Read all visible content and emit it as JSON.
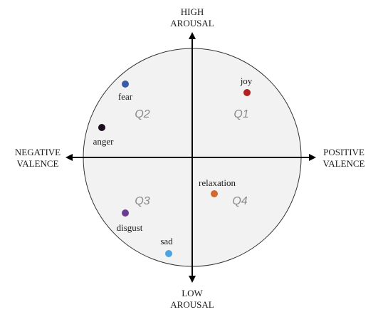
{
  "axes": {
    "top": [
      "HIGH",
      "AROUSAL"
    ],
    "bottom": [
      "LOW",
      "AROUSAL"
    ],
    "left": [
      "NEGATIVE",
      "VALENCE"
    ],
    "right": [
      "POSITIVE",
      "VALENCE"
    ]
  },
  "quadrants": {
    "q1": "Q1",
    "q2": "Q2",
    "q3": "Q3",
    "q4": "Q4"
  },
  "emotions": {
    "joy": {
      "label": "joy",
      "color": "#b22222"
    },
    "fear": {
      "label": "fear",
      "color": "#3a5ba8"
    },
    "anger": {
      "label": "anger",
      "color": "#1c0d1e"
    },
    "relaxation": {
      "label": "relaxation",
      "color": "#d2692f"
    },
    "disgust": {
      "label": "disgust",
      "color": "#6a3d8e"
    },
    "sad": {
      "label": "sad",
      "color": "#4da3e0"
    }
  },
  "colors": {
    "circle_fill": "#f2f2f2",
    "circle_stroke": "#333333",
    "axis": "#000000"
  }
}
